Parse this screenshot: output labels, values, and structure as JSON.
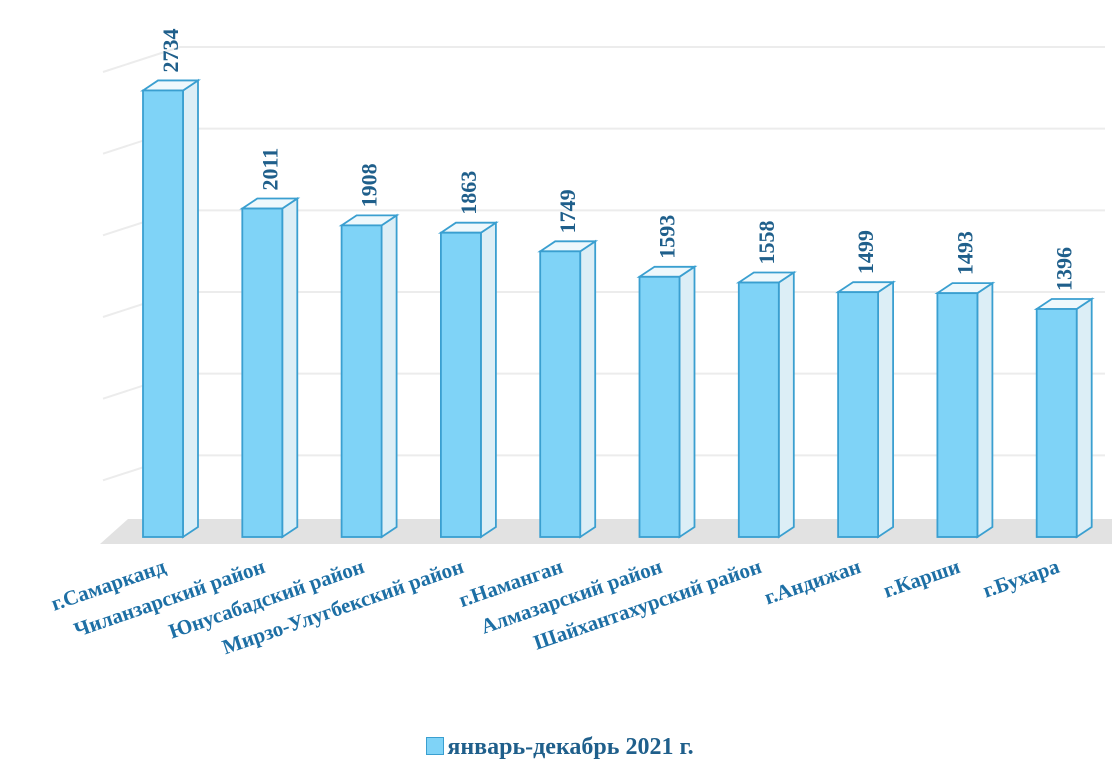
{
  "chart_data": {
    "type": "bar",
    "categories": [
      "г.Самарканд",
      "Чиланзарский район",
      "Юнусабадский район",
      "Мирзо-Улугбекский район",
      "г.Наманган",
      "Алмазарский район",
      "Шайхантахурский район",
      "г.Андижан",
      "г.Карши",
      "г.Бухара"
    ],
    "series": [
      {
        "name": "январь-декабрь 2021 г.",
        "values": [
          2734,
          2011,
          1908,
          1863,
          1749,
          1593,
          1558,
          1499,
          1493,
          1396
        ]
      }
    ],
    "ylim": [
      0,
      3000
    ],
    "grid": true,
    "legend": "bottom",
    "colors": {
      "bar_front": "#7fd3f7",
      "bar_side": "#dceef6",
      "bar_top": "#eef8fc",
      "bar_outline": "#3a9fd0",
      "value_label": "#1f5f8b",
      "category_label": "#1d6fa5"
    }
  }
}
